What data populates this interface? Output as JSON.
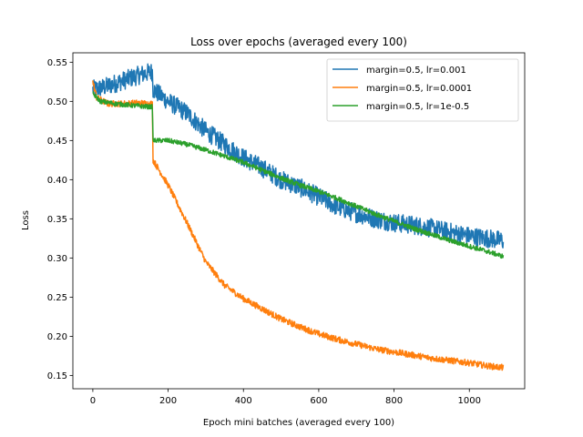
{
  "chart_data": {
    "type": "line",
    "title": "Loss over epochs (averaged every 100)",
    "xlabel": "Epoch mini batches (averaged every 100)",
    "ylabel": "Loss",
    "xlim": [
      -53,
      1147
    ],
    "ylim": [
      0.133,
      0.562
    ],
    "xticks": [
      0,
      200,
      400,
      600,
      800,
      1000
    ],
    "yticks": [
      0.15,
      0.2,
      0.25,
      0.3,
      0.35,
      0.4,
      0.45,
      0.5,
      0.55
    ],
    "grid": false,
    "legend": "top-right",
    "series": [
      {
        "name": "margin=0.5, lr=0.001",
        "color": "#1f77b4",
        "noise": 0.012,
        "points": [
          [
            0,
            0.515
          ],
          [
            30,
            0.518
          ],
          [
            60,
            0.523
          ],
          [
            90,
            0.528
          ],
          [
            120,
            0.533
          ],
          [
            150,
            0.537
          ],
          [
            158,
            0.538
          ],
          [
            160,
            0.515
          ],
          [
            200,
            0.5
          ],
          [
            250,
            0.485
          ],
          [
            300,
            0.462
          ],
          [
            350,
            0.445
          ],
          [
            400,
            0.428
          ],
          [
            450,
            0.415
          ],
          [
            500,
            0.4
          ],
          [
            550,
            0.39
          ],
          [
            600,
            0.378
          ],
          [
            650,
            0.365
          ],
          [
            700,
            0.357
          ],
          [
            750,
            0.35
          ],
          [
            800,
            0.345
          ],
          [
            850,
            0.342
          ],
          [
            900,
            0.338
          ],
          [
            950,
            0.333
          ],
          [
            1000,
            0.328
          ],
          [
            1050,
            0.325
          ],
          [
            1090,
            0.322
          ]
        ]
      },
      {
        "name": "margin=0.5, lr=0.0001",
        "color": "#ff7f0e",
        "noise": 0.004,
        "points": [
          [
            0,
            0.525
          ],
          [
            10,
            0.505
          ],
          [
            40,
            0.497
          ],
          [
            80,
            0.497
          ],
          [
            120,
            0.498
          ],
          [
            150,
            0.497
          ],
          [
            158,
            0.497
          ],
          [
            160,
            0.425
          ],
          [
            200,
            0.393
          ],
          [
            250,
            0.345
          ],
          [
            300,
            0.295
          ],
          [
            350,
            0.265
          ],
          [
            400,
            0.248
          ],
          [
            450,
            0.235
          ],
          [
            500,
            0.222
          ],
          [
            550,
            0.212
          ],
          [
            600,
            0.203
          ],
          [
            650,
            0.196
          ],
          [
            700,
            0.19
          ],
          [
            750,
            0.184
          ],
          [
            800,
            0.18
          ],
          [
            850,
            0.176
          ],
          [
            900,
            0.172
          ],
          [
            950,
            0.169
          ],
          [
            1000,
            0.166
          ],
          [
            1050,
            0.162
          ],
          [
            1090,
            0.16
          ]
        ]
      },
      {
        "name": "margin=0.5, lr=1e-0.5",
        "color": "#2ca02c",
        "noise": 0.003,
        "points": [
          [
            0,
            0.51
          ],
          [
            20,
            0.5
          ],
          [
            60,
            0.497
          ],
          [
            100,
            0.495
          ],
          [
            150,
            0.493
          ],
          [
            158,
            0.493
          ],
          [
            160,
            0.45
          ],
          [
            200,
            0.45
          ],
          [
            250,
            0.445
          ],
          [
            300,
            0.438
          ],
          [
            350,
            0.43
          ],
          [
            400,
            0.422
          ],
          [
            450,
            0.412
          ],
          [
            500,
            0.402
          ],
          [
            550,
            0.393
          ],
          [
            600,
            0.385
          ],
          [
            650,
            0.376
          ],
          [
            700,
            0.366
          ],
          [
            750,
            0.356
          ],
          [
            800,
            0.347
          ],
          [
            850,
            0.338
          ],
          [
            900,
            0.33
          ],
          [
            950,
            0.322
          ],
          [
            1000,
            0.315
          ],
          [
            1050,
            0.308
          ],
          [
            1090,
            0.302
          ]
        ]
      }
    ]
  }
}
